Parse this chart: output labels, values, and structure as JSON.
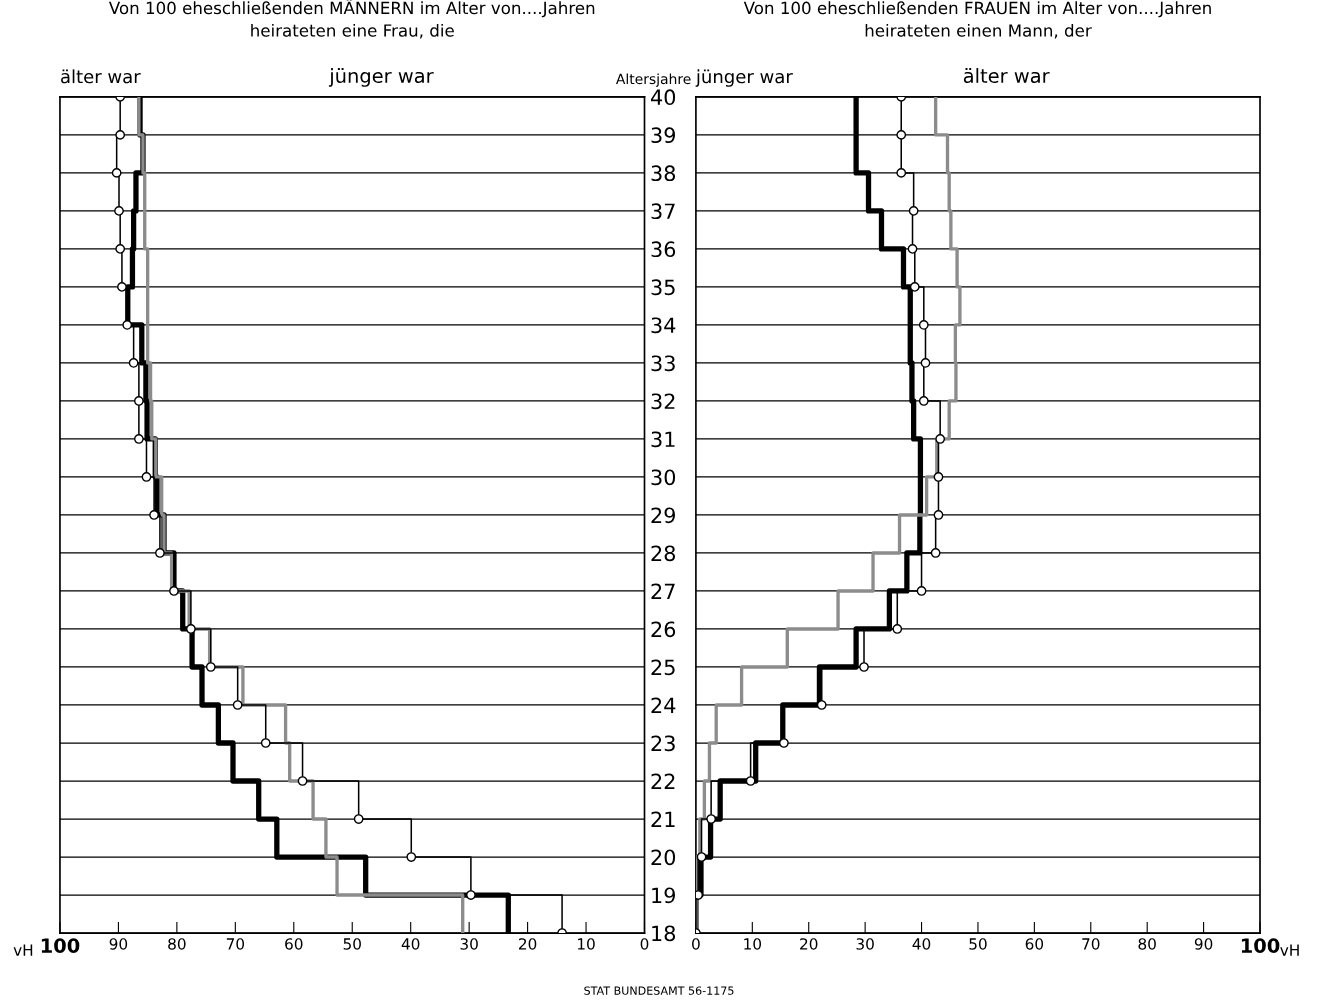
{
  "chart_data": [
    {
      "type": "step",
      "orientation": "horizontal",
      "title": "Von 100 eheschließenden MÄNNERN im Alter von....Jahren",
      "subtitle": "heirateten eine Frau, die",
      "xlabel": "vH",
      "annotations": [
        "älter war",
        "jünger war",
        "STAT BUNDESAMT 56-1175"
      ],
      "x": [
        18,
        19,
        20,
        21,
        22,
        23,
        24,
        25,
        26,
        27,
        28,
        29,
        30,
        31,
        32,
        33,
        34,
        35,
        36,
        37,
        38,
        39,
        40
      ],
      "series": [
        {
          "color": "#000000",
          "marker": "none",
          "values": [
            23.3,
            47.7,
            62.9,
            66.0,
            70.4,
            72.9,
            75.7,
            77.4,
            79.0,
            80.5,
            82.2,
            83.4,
            83.7,
            85.1,
            85.3,
            86.0,
            88.4,
            87.6,
            87.4,
            87.0,
            85.8,
            86.3,
            86.3
          ]
        },
        {
          "color": "#8c8c8c",
          "marker": "none",
          "values": [
            31.1,
            52.6,
            54.5,
            56.7,
            60.7,
            61.4,
            68.7,
            74.4,
            77.9,
            80.9,
            82.2,
            82.6,
            83.6,
            84.3,
            84.5,
            85.0,
            85.0,
            85.0,
            85.5,
            85.5,
            85.8,
            86.5,
            86.5
          ]
        },
        {
          "color": "#000000",
          "marker": "circle",
          "values": [
            14.1,
            29.7,
            39.9,
            48.9,
            58.5,
            64.8,
            69.6,
            74.2,
            77.6,
            80.5,
            82.9,
            83.9,
            85.2,
            86.5,
            86.5,
            87.4,
            88.5,
            89.4,
            89.7,
            89.9,
            90.3,
            89.7,
            89.7
          ]
        }
      ],
      "xlim": [
        100,
        0
      ],
      "xticks": [
        100,
        90,
        80,
        70,
        60,
        50,
        40,
        30,
        20,
        10,
        0
      ],
      "ylim": [
        18,
        40
      ],
      "yticks": [
        18,
        19,
        20,
        21,
        22,
        23,
        24,
        25,
        26,
        27,
        28,
        29,
        30,
        31,
        32,
        33,
        34,
        35,
        36,
        37,
        38,
        39,
        40
      ],
      "grid": "y",
      "tick_labels": "x",
      "line_style": "solid"
    },
    {
      "type": "step",
      "orientation": "horizontal",
      "title": "Von 100 eheschließenden FRAUEN im Alter von....Jahren",
      "subtitle": "heirateten einen Mann, der",
      "xlabel": "vH",
      "ylabel": "Altersjahre",
      "annotations": [
        "jünger war",
        "älter war"
      ],
      "x": [
        18,
        19,
        20,
        21,
        22,
        23,
        24,
        25,
        26,
        27,
        28,
        29,
        30,
        31,
        32,
        33,
        34,
        35,
        36,
        37,
        38,
        39,
        40
      ],
      "series": [
        {
          "color": "#000000",
          "marker": "none",
          "values": [
            0.0,
            0.9,
            2.6,
            4.3,
            10.6,
            15.4,
            21.9,
            28.4,
            34.3,
            37.4,
            39.7,
            39.8,
            39.8,
            38.6,
            38.3,
            38.0,
            38.0,
            36.8,
            32.9,
            30.6,
            28.4,
            28.4,
            28.4
          ]
        },
        {
          "color": "#8c8c8c",
          "marker": "none",
          "values": [
            0.0,
            0.2,
            0.7,
            1.5,
            2.4,
            3.6,
            8.1,
            16.2,
            25.2,
            31.4,
            36.1,
            40.9,
            42.7,
            44.9,
            46.1,
            46.0,
            46.8,
            46.3,
            45.2,
            44.9,
            44.6,
            42.5,
            42.5
          ]
        },
        {
          "color": "#000000",
          "marker": "circle",
          "values": [
            0.0,
            0.4,
            1.0,
            2.7,
            9.7,
            15.6,
            22.3,
            29.8,
            35.7,
            40.0,
            42.5,
            43.0,
            43.0,
            43.3,
            40.4,
            40.7,
            40.4,
            38.8,
            38.4,
            38.6,
            36.4,
            36.4,
            36.4
          ]
        }
      ],
      "xlim": [
        0,
        100
      ],
      "xticks": [
        0,
        10,
        20,
        30,
        40,
        50,
        60,
        70,
        80,
        90,
        100
      ],
      "ylim": [
        18,
        40
      ],
      "yticks": [
        18,
        19,
        20,
        21,
        22,
        23,
        24,
        25,
        26,
        27,
        28,
        29,
        30,
        31,
        32,
        33,
        34,
        35,
        36,
        37,
        38,
        39,
        40
      ],
      "grid": "y",
      "line_style": "solid"
    }
  ]
}
